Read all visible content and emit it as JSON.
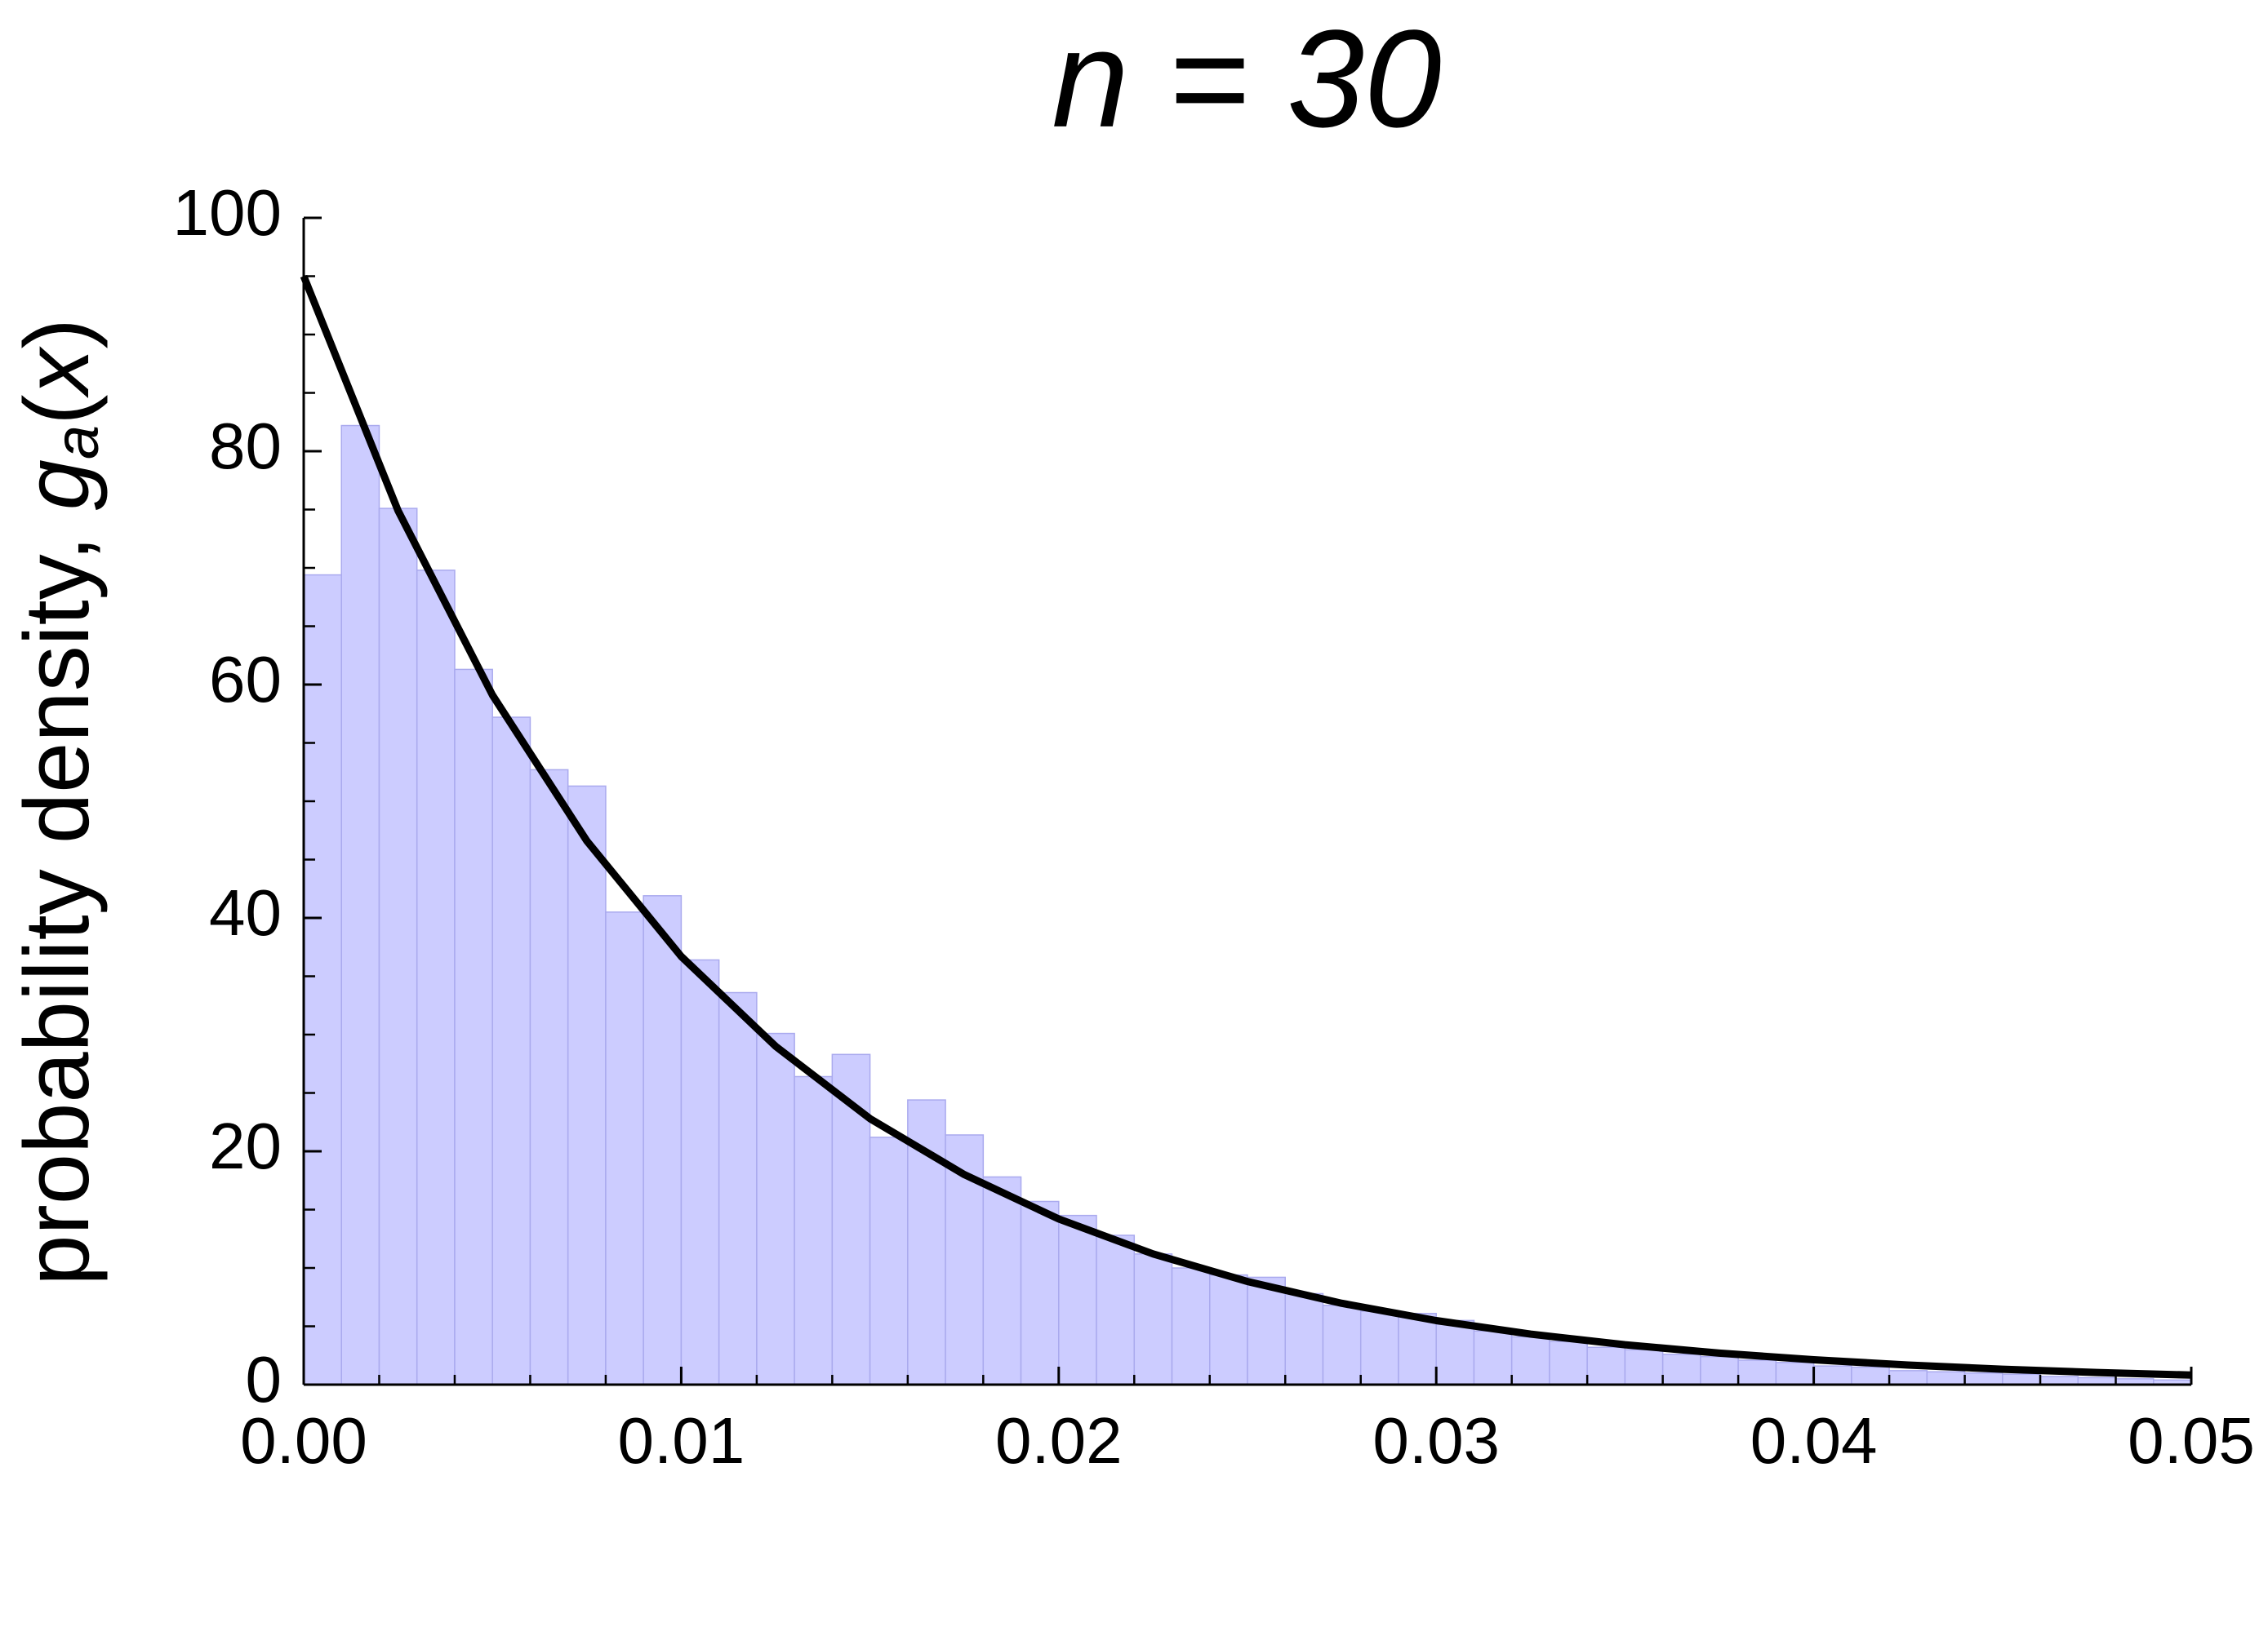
{
  "chart_data": {
    "type": "histogram",
    "title": "n = 30",
    "ylabel_parts": [
      "probability density, ",
      "g",
      "a",
      "(",
      "x",
      ")"
    ],
    "bins": [
      0,
      0.001,
      0.002,
      0.003,
      0.004,
      0.005,
      0.006,
      0.007,
      0.008,
      0.009,
      0.01,
      0.011,
      0.012,
      0.013,
      0.014,
      0.015,
      0.016,
      0.017,
      0.018,
      0.019,
      0.02,
      0.021,
      0.022,
      0.023,
      0.024,
      0.025,
      0.026,
      0.027,
      0.028,
      0.029,
      0.03,
      0.031,
      0.032,
      0.033,
      0.034,
      0.035,
      0.036,
      0.037,
      0.038,
      0.039,
      0.04,
      0.041,
      0.042,
      0.043,
      0.044,
      0.045,
      0.046,
      0.047,
      0.048,
      0.049,
      0.05
    ],
    "values": [
      69.4,
      82.2,
      75.1,
      69.8,
      61.3,
      57.2,
      52.7,
      51.3,
      40.5,
      41.9,
      36.4,
      33.6,
      30.1,
      26.4,
      28.3,
      21.2,
      24.4,
      21.4,
      17.8,
      15.7,
      14.5,
      12.8,
      11.2,
      10.0,
      9.4,
      9.2,
      7.8,
      6.8,
      6.3,
      6.1,
      5.5,
      4.6,
      4.1,
      3.7,
      3.2,
      3.0,
      2.6,
      2.4,
      2.1,
      1.9,
      1.6,
      1.5,
      1.2,
      1.1,
      1.0,
      0.9,
      0.7,
      0.6,
      0.5,
      0.4
    ],
    "color": "#ccccff",
    "curve": {
      "color": "#000000",
      "x": [
        0,
        0.0025,
        0.005,
        0.0075,
        0.01,
        0.0125,
        0.015,
        0.0175,
        0.02,
        0.0225,
        0.025,
        0.0275,
        0.03,
        0.0325,
        0.035,
        0.0375,
        0.04,
        0.0425,
        0.045,
        0.0475,
        0.05
      ],
      "values": [
        95,
        74.9,
        59.1,
        46.6,
        36.7,
        29.0,
        22.8,
        18.0,
        14.2,
        11.2,
        8.84,
        6.97,
        5.49,
        4.33,
        3.42,
        2.7,
        2.13,
        1.68,
        1.32,
        1.04,
        0.82
      ]
    },
    "xlim": [
      0,
      0.05
    ],
    "xticks": [
      {
        "value": 0,
        "label": "0.00"
      },
      0.01,
      0.02,
      0.03,
      0.04,
      0.05
    ],
    "xminor_ticks": [
      0.002,
      0.004,
      0.006,
      0.008,
      0.012,
      0.014,
      0.016,
      0.018,
      0.022,
      0.024,
      0.026,
      0.028,
      0.032,
      0.034,
      0.036,
      0.038,
      0.042,
      0.044,
      0.046,
      0.048
    ],
    "ylim": [
      0,
      100
    ],
    "yticks": [
      0,
      20,
      40,
      60,
      80,
      100
    ],
    "yminor_ticks": [
      5,
      10,
      15,
      25,
      30,
      35,
      45,
      50,
      55,
      65,
      70,
      75,
      85,
      90,
      95
    ]
  }
}
